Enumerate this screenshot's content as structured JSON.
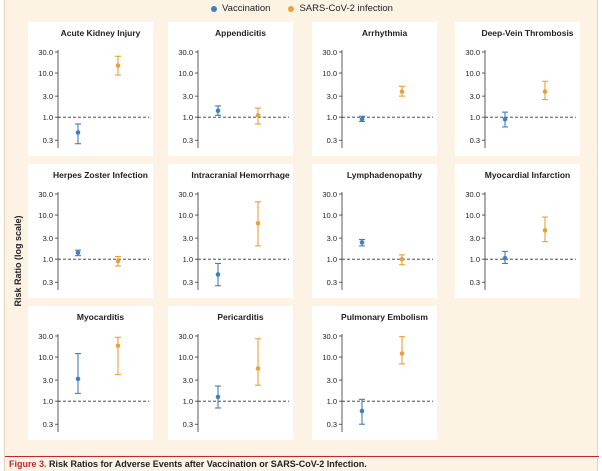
{
  "legend": {
    "vaccination_label": "Vaccination",
    "infection_label": "SARS-CoV-2 infection",
    "vaccination_color": "#3f7fc1",
    "infection_color": "#e8a13a"
  },
  "y_axis_label": "Risk Ratio (log scale)",
  "caption": {
    "figure_label": "Figure 3.",
    "text": "Risk Ratios for Adverse Events after Vaccination or SARS-CoV-2 Infection."
  },
  "chart_data": {
    "type": "scatter",
    "y_scale": "log",
    "ylim": [
      0.2,
      30
    ],
    "y_ticks": [
      0.3,
      1.0,
      3.0,
      10.0,
      30.0
    ],
    "y_tick_labels": [
      "0.3",
      "1.0",
      "3.0",
      "10.0",
      "30.0"
    ],
    "reference_line": 1.0,
    "series_names": [
      "Vaccination",
      "SARS-CoV-2 infection"
    ],
    "panels": [
      {
        "title": "Acute Kidney Injury",
        "vaccination": {
          "rr": 0.45,
          "lo": 0.25,
          "hi": 0.7
        },
        "infection": {
          "rr": 14.8,
          "lo": 9.0,
          "hi": 24.0
        }
      },
      {
        "title": "Appendicitis",
        "vaccination": {
          "rr": 1.4,
          "lo": 1.1,
          "hi": 1.8
        },
        "infection": {
          "rr": 1.1,
          "lo": 0.7,
          "hi": 1.6
        }
      },
      {
        "title": "Arrhythmia",
        "vaccination": {
          "rr": 0.9,
          "lo": 0.8,
          "hi": 1.05
        },
        "infection": {
          "rr": 3.8,
          "lo": 3.0,
          "hi": 5.0
        }
      },
      {
        "title": "Deep-Vein Thrombosis",
        "vaccination": {
          "rr": 0.9,
          "lo": 0.6,
          "hi": 1.3
        },
        "infection": {
          "rr": 3.8,
          "lo": 2.5,
          "hi": 6.5
        }
      },
      {
        "title": "Herpes Zoster Infection",
        "vaccination": {
          "rr": 1.4,
          "lo": 1.2,
          "hi": 1.6
        },
        "infection": {
          "rr": 0.9,
          "lo": 0.7,
          "hi": 1.15
        }
      },
      {
        "title": "Intracranial Hemorrhage",
        "vaccination": {
          "rr": 0.45,
          "lo": 0.25,
          "hi": 0.8
        },
        "infection": {
          "rr": 6.5,
          "lo": 2.0,
          "hi": 20.0
        }
      },
      {
        "title": "Lymphadenopathy",
        "vaccination": {
          "rr": 2.4,
          "lo": 2.0,
          "hi": 2.8
        },
        "infection": {
          "rr": 1.0,
          "lo": 0.75,
          "hi": 1.25
        }
      },
      {
        "title": "Myocardial Infarction",
        "vaccination": {
          "rr": 1.05,
          "lo": 0.8,
          "hi": 1.5
        },
        "infection": {
          "rr": 4.5,
          "lo": 2.5,
          "hi": 9.0
        }
      },
      {
        "title": "Myocarditis",
        "vaccination": {
          "rr": 3.2,
          "lo": 1.5,
          "hi": 12.0
        },
        "infection": {
          "rr": 18.0,
          "lo": 4.0,
          "hi": 28.0
        }
      },
      {
        "title": "Pericarditis",
        "vaccination": {
          "rr": 1.25,
          "lo": 0.7,
          "hi": 2.2
        },
        "infection": {
          "rr": 5.5,
          "lo": 2.3,
          "hi": 26.0
        }
      },
      {
        "title": "Pulmonary Embolism",
        "vaccination": {
          "rr": 0.6,
          "lo": 0.3,
          "hi": 1.1
        },
        "infection": {
          "rr": 12.0,
          "lo": 7.0,
          "hi": 29.0
        }
      }
    ]
  }
}
